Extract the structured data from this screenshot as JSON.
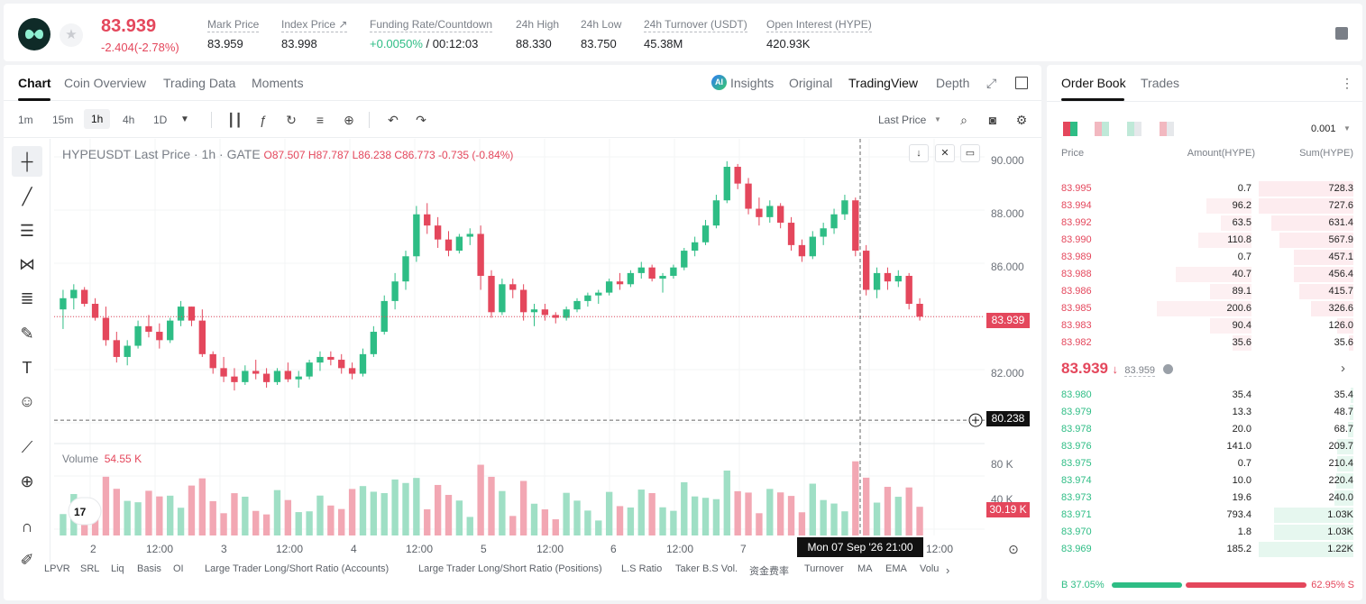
{
  "header": {
    "last_price": "83.939",
    "change": "-2.404(-2.78%)",
    "stats": [
      {
        "label": "Mark Price",
        "value": "83.959"
      },
      {
        "label": "Index Price ↗",
        "value": "83.998"
      },
      {
        "label": "Funding Rate/Countdown",
        "value_green": "+0.0050%",
        "value": " / 00:12:03"
      },
      {
        "label": "24h High",
        "value": "88.330"
      },
      {
        "label": "24h Low",
        "value": "83.750"
      },
      {
        "label": "24h Turnover (USDT)",
        "value": "45.38M"
      },
      {
        "label": "Open Interest (HYPE)",
        "value": "420.93K"
      }
    ]
  },
  "tabs": {
    "left": [
      "Chart",
      "Coin Overview",
      "Trading Data",
      "Moments"
    ],
    "right": [
      "Insights",
      "Original",
      "TradingView",
      "Depth"
    ],
    "ai_badge": "AI"
  },
  "toolbar": {
    "timeframes": [
      "1m",
      "15m",
      "1h",
      "4h",
      "1D"
    ],
    "last_price_select": "Last Price"
  },
  "chart": {
    "legend_title": "HYPEUSDT Last Price · 1h · GATE",
    "ohlc": "O87.507  H87.787  L86.238  C86.773  -0.735 (-0.84%)",
    "volume_label": "Volume",
    "volume_value": "54.55 K",
    "price_ticks": [
      "90.000",
      "88.000",
      "86.000",
      "82.000"
    ],
    "current_price_tag": "83.939",
    "crosshair_price_tag": "80.238",
    "volume_ticks": [
      "80 K",
      "40 K"
    ],
    "current_volume_tag": "30.19 K",
    "time_ticks": [
      "2",
      "12:00",
      "3",
      "12:00",
      "4",
      "12:00",
      "5",
      "12:00",
      "6",
      "12:00",
      "7",
      "12:00"
    ],
    "crosshair_time": "Mon 07 Sep '26   21:00",
    "indicators": [
      "LPVR",
      "SRL",
      "Liq",
      "Basis",
      "OI",
      "Large Trader Long/Short Ratio (Accounts)",
      "Large Trader Long/Short Ratio (Positions)",
      "L.S Ratio",
      "Taker B.S Vol.",
      "资金费率",
      "Turnover",
      "MA",
      "EMA",
      "Volu"
    ]
  },
  "chart_data": {
    "type": "candlestick",
    "title": "HYPEUSDT Last Price · 1h · GATE",
    "ylim": [
      79.5,
      90.3
    ],
    "candles": [
      [
        84.2,
        84.9,
        83.5,
        84.6
      ],
      [
        84.6,
        85.1,
        84.2,
        84.9
      ],
      [
        84.9,
        85.0,
        84.3,
        84.4
      ],
      [
        84.4,
        84.6,
        83.8,
        83.9
      ],
      [
        83.9,
        84.3,
        82.9,
        83.1
      ],
      [
        83.1,
        83.4,
        82.3,
        82.5
      ],
      [
        82.5,
        83.1,
        82.2,
        82.9
      ],
      [
        82.9,
        83.8,
        82.8,
        83.6
      ],
      [
        83.6,
        84.0,
        83.2,
        83.4
      ],
      [
        83.4,
        83.7,
        82.8,
        83.1
      ],
      [
        83.1,
        83.9,
        83.0,
        83.8
      ],
      [
        83.8,
        84.5,
        83.6,
        84.3
      ],
      [
        84.3,
        84.3,
        83.6,
        83.8
      ],
      [
        83.8,
        84.2,
        82.5,
        82.6
      ],
      [
        82.6,
        82.7,
        81.9,
        82.1
      ],
      [
        82.1,
        82.5,
        81.6,
        81.8
      ],
      [
        81.8,
        82.1,
        81.3,
        81.6
      ],
      [
        81.6,
        82.2,
        81.5,
        82.0
      ],
      [
        82.0,
        82.4,
        81.7,
        81.9
      ],
      [
        81.9,
        82.1,
        81.4,
        81.6
      ],
      [
        81.6,
        82.1,
        81.5,
        82.0
      ],
      [
        82.0,
        82.3,
        81.6,
        81.7
      ],
      [
        81.7,
        82.0,
        81.4,
        81.8
      ],
      [
        81.8,
        82.4,
        81.7,
        82.3
      ],
      [
        82.3,
        82.7,
        82.0,
        82.5
      ],
      [
        82.5,
        82.7,
        82.2,
        82.4
      ],
      [
        82.4,
        82.6,
        81.9,
        82.1
      ],
      [
        82.1,
        82.3,
        81.7,
        81.9
      ],
      [
        81.9,
        82.8,
        81.8,
        82.6
      ],
      [
        82.6,
        83.6,
        82.5,
        83.4
      ],
      [
        83.4,
        84.7,
        83.3,
        84.5
      ],
      [
        84.5,
        85.5,
        84.2,
        85.2
      ],
      [
        85.2,
        86.3,
        84.9,
        86.1
      ],
      [
        86.1,
        87.9,
        85.9,
        87.6
      ],
      [
        87.6,
        88.0,
        86.9,
        87.2
      ],
      [
        87.2,
        87.5,
        86.4,
        86.7
      ],
      [
        86.7,
        87.0,
        86.1,
        86.3
      ],
      [
        86.3,
        86.9,
        86.2,
        86.8
      ],
      [
        86.8,
        87.1,
        86.5,
        86.9
      ],
      [
        86.9,
        87.2,
        84.9,
        85.4
      ],
      [
        85.4,
        85.6,
        83.9,
        84.1
      ],
      [
        84.1,
        85.3,
        84.0,
        85.1
      ],
      [
        85.1,
        85.3,
        84.6,
        84.9
      ],
      [
        84.9,
        85.1,
        83.8,
        84.1
      ],
      [
        84.1,
        84.4,
        83.6,
        84.2
      ],
      [
        84.2,
        84.4,
        83.8,
        84.0
      ],
      [
        84.0,
        84.1,
        83.7,
        83.9
      ],
      [
        83.9,
        84.3,
        83.8,
        84.2
      ],
      [
        84.2,
        84.6,
        84.1,
        84.5
      ],
      [
        84.5,
        84.8,
        84.3,
        84.7
      ],
      [
        84.7,
        84.9,
        84.4,
        84.8
      ],
      [
        84.8,
        85.3,
        84.7,
        85.2
      ],
      [
        85.2,
        85.5,
        84.9,
        85.1
      ],
      [
        85.1,
        85.6,
        85.0,
        85.5
      ],
      [
        85.5,
        85.9,
        85.3,
        85.7
      ],
      [
        85.7,
        85.8,
        85.2,
        85.3
      ],
      [
        85.3,
        85.5,
        84.8,
        85.4
      ],
      [
        85.4,
        85.8,
        85.3,
        85.7
      ],
      [
        85.7,
        86.4,
        85.6,
        86.3
      ],
      [
        86.3,
        86.8,
        86.1,
        86.6
      ],
      [
        86.6,
        87.4,
        86.5,
        87.2
      ],
      [
        87.2,
        88.3,
        87.1,
        88.1
      ],
      [
        88.1,
        89.5,
        88.0,
        89.3
      ],
      [
        89.3,
        89.4,
        88.5,
        88.7
      ],
      [
        88.7,
        88.9,
        87.6,
        87.8
      ],
      [
        87.8,
        88.2,
        87.2,
        87.5
      ],
      [
        87.5,
        88.1,
        87.3,
        87.9
      ],
      [
        87.9,
        88.0,
        87.1,
        87.3
      ],
      [
        87.3,
        87.5,
        86.3,
        86.5
      ],
      [
        86.5,
        86.7,
        85.9,
        86.1
      ],
      [
        86.1,
        87.0,
        86.0,
        86.8
      ],
      [
        86.8,
        87.3,
        86.5,
        87.1
      ],
      [
        87.1,
        87.8,
        86.9,
        87.6
      ],
      [
        87.6,
        88.3,
        87.4,
        88.1
      ],
      [
        88.1,
        88.2,
        86.1,
        86.3
      ],
      [
        86.3,
        86.5,
        84.7,
        84.9
      ],
      [
        84.9,
        85.7,
        84.6,
        85.5
      ],
      [
        85.5,
        85.7,
        84.9,
        85.2
      ],
      [
        85.2,
        85.6,
        85.0,
        85.4
      ],
      [
        85.4,
        85.5,
        84.2,
        84.4
      ],
      [
        84.4,
        84.6,
        83.8,
        83.94
      ]
    ],
    "volume_ylim": [
      0,
      100000
    ]
  },
  "orderbook": {
    "tabs": [
      "Order Book",
      "Trades"
    ],
    "precision": "0.001",
    "headers": [
      "Price",
      "Amount(HYPE)",
      "Sum(HYPE)"
    ],
    "asks": [
      [
        "83.995",
        "0.7",
        "728.3"
      ],
      [
        "83.994",
        "96.2",
        "727.6"
      ],
      [
        "83.992",
        "63.5",
        "631.4"
      ],
      [
        "83.990",
        "110.8",
        "567.9"
      ],
      [
        "83.989",
        "0.7",
        "457.1"
      ],
      [
        "83.988",
        "40.7",
        "456.4"
      ],
      [
        "83.986",
        "89.1",
        "415.7"
      ],
      [
        "83.985",
        "200.6",
        "326.6"
      ],
      [
        "83.983",
        "90.4",
        "126.0"
      ],
      [
        "83.982",
        "35.6",
        "35.6"
      ]
    ],
    "bids": [
      [
        "83.980",
        "35.4",
        "35.4"
      ],
      [
        "83.979",
        "13.3",
        "48.7"
      ],
      [
        "83.978",
        "20.0",
        "68.7"
      ],
      [
        "83.976",
        "141.0",
        "209.7"
      ],
      [
        "83.975",
        "0.7",
        "210.4"
      ],
      [
        "83.974",
        "10.0",
        "220.4"
      ],
      [
        "83.973",
        "19.6",
        "240.0"
      ],
      [
        "83.971",
        "793.4",
        "1.03K"
      ],
      [
        "83.970",
        "1.8",
        "1.03K"
      ],
      [
        "83.969",
        "185.2",
        "1.22K"
      ]
    ],
    "ask_depth": [
      1.0,
      1.0,
      0.87,
      0.78,
      0.63,
      0.63,
      0.57,
      0.45,
      0.17,
      0.05
    ],
    "ask_amount_depth": [
      0,
      0.12,
      0.08,
      0.14,
      0,
      0.2,
      0.11,
      0.25,
      0.11,
      0.05
    ],
    "bid_depth": [
      0.03,
      0.04,
      0.06,
      0.17,
      0.17,
      0.18,
      0.2,
      0.84,
      0.84,
      1.0
    ],
    "mid_price": "83.939",
    "mid_arrow": "↓",
    "mark_price": "83.959",
    "buy_ratio": "B 37.05%",
    "sell_ratio": "62.95% S",
    "buy_fraction": 0.3705
  },
  "colors": {
    "up": "#2ebd85",
    "down": "#e4475c"
  }
}
